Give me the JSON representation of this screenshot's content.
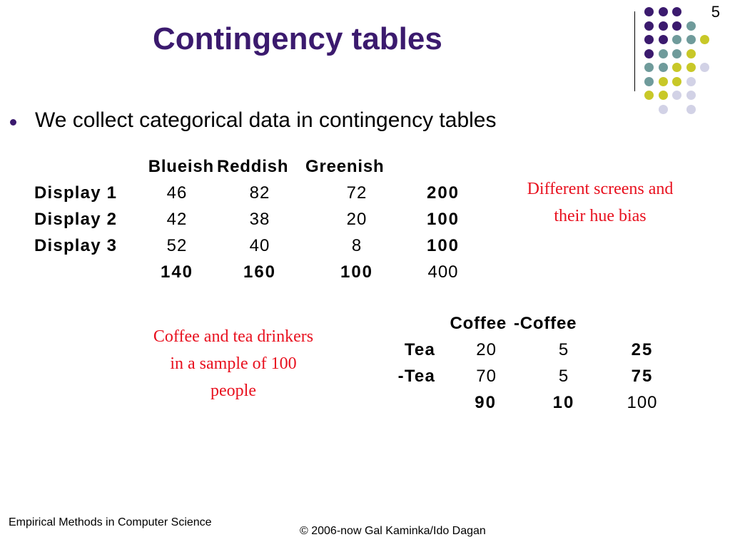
{
  "slide_number": "5",
  "title": "Contingency tables",
  "bullet": "We collect categorical data in contingency tables",
  "table1": {
    "columns": [
      "Blueish",
      "Reddish",
      "Greenish"
    ],
    "rows": [
      {
        "label": "Display 1",
        "values": [
          "46",
          "82",
          "72"
        ],
        "total": "200"
      },
      {
        "label": "Display 2",
        "values": [
          "42",
          "38",
          "20"
        ],
        "total": "100"
      },
      {
        "label": "Display 3",
        "values": [
          "52",
          "40",
          "8"
        ],
        "total": "100"
      }
    ],
    "column_totals": [
      "140",
      "160",
      "100"
    ],
    "grand_total": "400"
  },
  "note1": [
    "Different screens and",
    "their hue bias"
  ],
  "table2": {
    "columns": [
      "Coffee",
      "-Coffee"
    ],
    "rows": [
      {
        "label": "Tea",
        "values": [
          "20",
          "5"
        ],
        "total": "25"
      },
      {
        "label": "-Tea",
        "values": [
          "70",
          "5"
        ],
        "total": "75"
      }
    ],
    "column_totals": [
      "90",
      "10"
    ],
    "grand_total": "100"
  },
  "note2": [
    "Coffee and tea drinkers",
    "in a sample of 100",
    "people"
  ],
  "footer": {
    "left": "Empirical Methods in Computer Science",
    "right": "© 2006-now  Gal Kaminka/Ido Dagan"
  },
  "colors": {
    "title": "#3b1a6e",
    "note": "#e8101e",
    "dot_purple": "#3b1a6e",
    "dot_teal": "#6f9b9b",
    "dot_yellow": "#c8c828",
    "dot_lavender": "#d2d2e6"
  }
}
